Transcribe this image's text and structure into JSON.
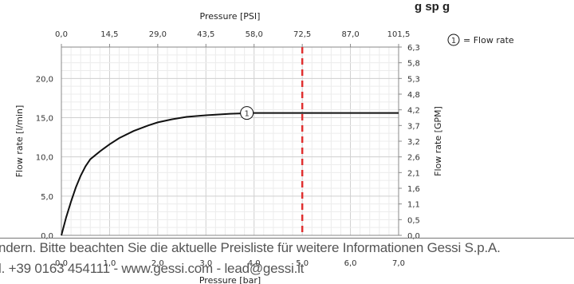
{
  "header_fragment": "g sp g",
  "chart_data": {
    "type": "line",
    "title": "",
    "top_axis_label": "Pressure [PSI]",
    "top_ticks": [
      "0,0",
      "14,5",
      "29,0",
      "43,5",
      "58,0",
      "72,5",
      "87,0",
      "101,5"
    ],
    "xlabel": "Pressure [bar]",
    "x_ticks": [
      "0,0",
      "1,0",
      "2,0",
      "3,0",
      "4,0",
      "5,0",
      "6,0",
      "7,0"
    ],
    "xlim": [
      0,
      7
    ],
    "ylabel": "Flow rate [l/min]",
    "y_ticks": [
      "0,0",
      "5,0",
      "10,0",
      "15,0",
      "20,0"
    ],
    "ylim": [
      0,
      24
    ],
    "right_axis_label": "Flow rate [GPM]",
    "right_ticks": [
      "0,0",
      "0,5",
      "1,1",
      "1,6",
      "2,1",
      "2,6",
      "3,2",
      "3,7",
      "4,2",
      "4,8",
      "5,3",
      "5,8",
      "6,3"
    ],
    "series": [
      {
        "name": "Flow rate",
        "marker_label": "1",
        "color": "#111111",
        "x": [
          0.0,
          0.1,
          0.2,
          0.3,
          0.4,
          0.5,
          0.6,
          0.8,
          1.0,
          1.2,
          1.5,
          1.8,
          2.0,
          2.3,
          2.6,
          3.0,
          3.5,
          4.0,
          4.2,
          5.0,
          6.0,
          7.0
        ],
        "y": [
          0.0,
          2.3,
          4.3,
          6.1,
          7.6,
          8.8,
          9.7,
          10.7,
          11.6,
          12.4,
          13.3,
          14.0,
          14.4,
          14.8,
          15.1,
          15.3,
          15.5,
          15.6,
          15.6,
          15.6,
          15.6,
          15.6
        ]
      }
    ],
    "reference_line": {
      "x": 5.0,
      "color": "#e03030",
      "style": "dashed"
    },
    "legend": {
      "marker": "1",
      "text": "= Flow rate",
      "placement": "top-right"
    },
    "grid": true
  },
  "footer": {
    "line1": "ndern. Bitte beachten Sie die aktuelle Preisliste für weitere Informationen Gessi S.p.A.",
    "line2": "l. +39 0163 454111 - www.gessi.com - lead@gessi.it"
  }
}
